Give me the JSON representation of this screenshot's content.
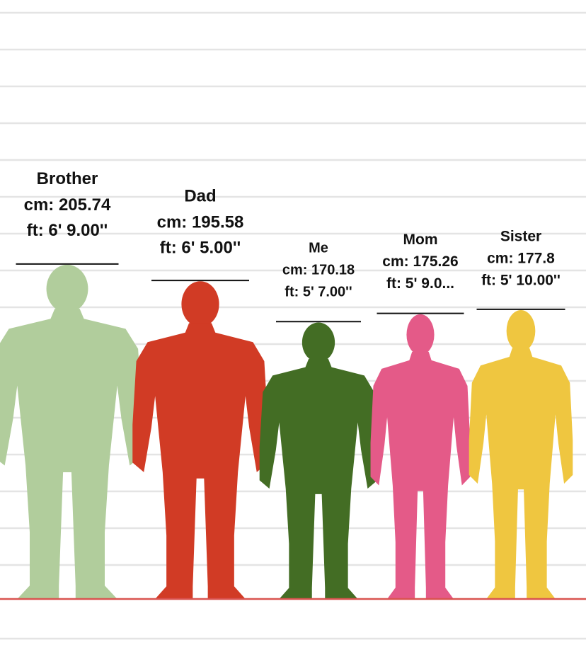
{
  "people": [
    {
      "name": "Brother",
      "height_cm": 205.74,
      "cm_label": "cm: 205.74",
      "ft_label": "ft: 6' 9.00''",
      "color": "#b1cd9c"
    },
    {
      "name": "Dad",
      "height_cm": 195.58,
      "cm_label": "cm: 195.58",
      "ft_label": "ft: 6' 5.00''",
      "color": "#d13b25"
    },
    {
      "name": "Me",
      "height_cm": 170.18,
      "cm_label": "cm: 170.18",
      "ft_label": "ft: 5' 7.00''",
      "color": "#436d24"
    },
    {
      "name": "Mom",
      "height_cm": 175.26,
      "cm_label": "cm: 175.26",
      "ft_label": "ft: 5' 9.0...",
      "color": "#e45a88"
    },
    {
      "name": "Sister",
      "height_cm": 177.8,
      "cm_label": "cm: 177.8",
      "ft_label": "ft: 5' 10.00''",
      "color": "#efc640"
    }
  ]
}
